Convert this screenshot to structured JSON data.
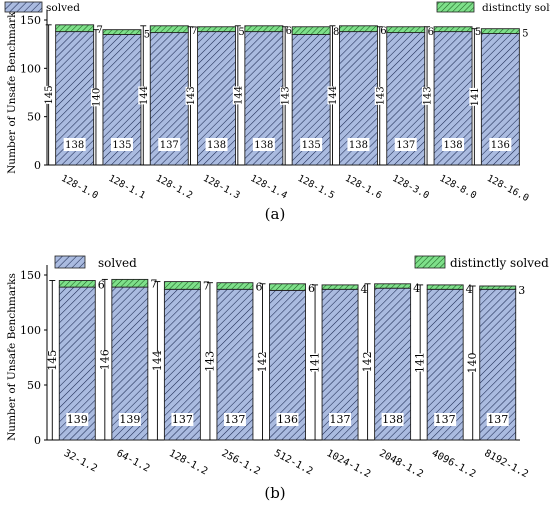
{
  "colors": {
    "solved": "#aabbe0",
    "solved_hatch": "#1a2850",
    "distinct": "#7ee08a",
    "distinct_hatch": "#1b5e20"
  },
  "chart_data": [
    {
      "type": "bar",
      "caption": "(a)",
      "ylabel": "Number of Unsafe Benchmarks",
      "ylim": [
        0,
        150
      ],
      "yticks": [
        0,
        50,
        100,
        150
      ],
      "legend": {
        "solved": "solved",
        "distinct": "distinctly solved"
      },
      "categories": [
        "128-1.0",
        "128-1.1",
        "128-1.2",
        "128-1.3",
        "128-1.4",
        "128-1.5",
        "128-1.6",
        "128-3.0",
        "128-8.0",
        "128-16.0"
      ],
      "series": [
        {
          "name": "solved",
          "values": [
            138,
            135,
            137,
            138,
            138,
            135,
            138,
            137,
            138,
            136
          ]
        },
        {
          "name": "distinctly solved",
          "values": [
            7,
            5,
            7,
            5,
            6,
            8,
            6,
            6,
            5,
            5
          ]
        }
      ],
      "totals": [
        145,
        140,
        144,
        143,
        144,
        143,
        144,
        143,
        143,
        141
      ]
    },
    {
      "type": "bar",
      "caption": "(b)",
      "ylabel": "Number of Unsafe Benchmarks",
      "ylim": [
        0,
        150
      ],
      "yticks": [
        0,
        50,
        100,
        150
      ],
      "legend": {
        "solved": "solved",
        "distinct": "distinctly solved"
      },
      "categories": [
        "32-1.2",
        "64-1.2",
        "128-1.2",
        "256-1.2",
        "512-1.2",
        "1024-1.2",
        "2048-1.2",
        "4096-1.2",
        "8192-1.2"
      ],
      "series": [
        {
          "name": "solved",
          "values": [
            139,
            139,
            137,
            137,
            136,
            137,
            138,
            137,
            137
          ]
        },
        {
          "name": "distinctly solved",
          "values": [
            6,
            7,
            7,
            6,
            6,
            4,
            4,
            4,
            3
          ]
        }
      ],
      "totals": [
        145,
        146,
        144,
        143,
        142,
        141,
        142,
        141,
        140
      ]
    }
  ]
}
